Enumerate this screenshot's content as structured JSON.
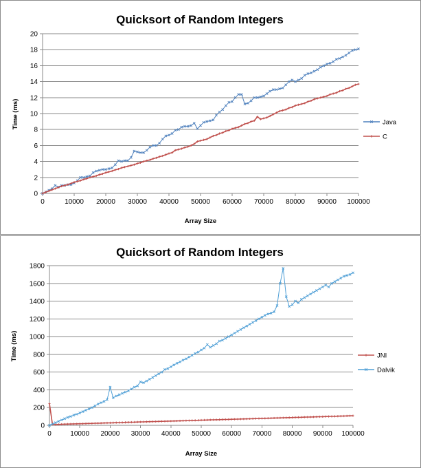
{
  "chart_data": [
    {
      "type": "line",
      "title": "Quicksort  of Random Integers",
      "xlabel": "Array Size",
      "ylabel": "Time (ms)",
      "xlim": [
        0,
        100000
      ],
      "ylim": [
        0,
        20
      ],
      "x_ticks": [
        "0",
        "10000",
        "20000",
        "30000",
        "40000",
        "50000",
        "60000",
        "70000",
        "80000",
        "90000",
        "100000"
      ],
      "y_ticks": [
        "0",
        "2",
        "4",
        "6",
        "8",
        "10",
        "12",
        "14",
        "16",
        "18",
        "20"
      ],
      "grid": true,
      "legend_position": "right",
      "x": [
        0,
        1000,
        2000,
        3000,
        4000,
        5000,
        6000,
        7000,
        8000,
        9000,
        10000,
        11000,
        12000,
        13000,
        14000,
        15000,
        16000,
        17000,
        18000,
        19000,
        20000,
        21000,
        22000,
        23000,
        24000,
        25000,
        26000,
        27000,
        28000,
        29000,
        30000,
        31000,
        32000,
        33000,
        34000,
        35000,
        36000,
        37000,
        38000,
        39000,
        40000,
        41000,
        42000,
        43000,
        44000,
        45000,
        46000,
        47000,
        48000,
        49000,
        50000,
        51000,
        52000,
        53000,
        54000,
        55000,
        56000,
        57000,
        58000,
        59000,
        60000,
        61000,
        62000,
        63000,
        64000,
        65000,
        66000,
        67000,
        68000,
        69000,
        70000,
        71000,
        72000,
        73000,
        74000,
        75000,
        76000,
        77000,
        78000,
        79000,
        80000,
        81000,
        82000,
        83000,
        84000,
        85000,
        86000,
        87000,
        88000,
        89000,
        90000,
        91000,
        92000,
        93000,
        94000,
        95000,
        96000,
        97000,
        98000,
        99000,
        100000
      ],
      "series": [
        {
          "name": "Java",
          "color": "#4f81bd",
          "marker": "x",
          "values": [
            0,
            0.2,
            0.4,
            0.6,
            1.0,
            0.8,
            1.0,
            1.0,
            1.1,
            1.1,
            1.3,
            1.6,
            2.0,
            2.0,
            2.1,
            2.2,
            2.6,
            2.8,
            2.9,
            3.0,
            3.0,
            3.1,
            3.2,
            3.6,
            4.1,
            4.0,
            4.1,
            4.1,
            4.5,
            5.3,
            5.2,
            5.1,
            5.1,
            5.4,
            5.8,
            6.0,
            6.0,
            6.3,
            6.8,
            7.2,
            7.3,
            7.5,
            7.9,
            8.0,
            8.3,
            8.4,
            8.4,
            8.5,
            8.8,
            8.1,
            8.5,
            8.9,
            9.0,
            9.1,
            9.2,
            9.8,
            10.2,
            10.5,
            11.0,
            11.4,
            11.5,
            12.0,
            12.4,
            12.4,
            11.2,
            11.3,
            11.6,
            12.0,
            12.0,
            12.1,
            12.2,
            12.5,
            12.8,
            13.0,
            13.0,
            13.1,
            13.2,
            13.6,
            14.0,
            14.2,
            14.0,
            14.2,
            14.4,
            14.8,
            15.0,
            15.1,
            15.3,
            15.5,
            15.8,
            16.0,
            16.2,
            16.3,
            16.5,
            16.8,
            16.9,
            17.1,
            17.3,
            17.6,
            17.9,
            18.0,
            18.1
          ]
        },
        {
          "name": "C",
          "color": "#c0504d",
          "marker": "+",
          "values": [
            0,
            0.15,
            0.3,
            0.45,
            0.6,
            0.75,
            0.9,
            1.0,
            1.1,
            1.25,
            1.4,
            1.5,
            1.6,
            1.75,
            1.85,
            2.0,
            2.1,
            2.2,
            2.35,
            2.45,
            2.6,
            2.7,
            2.8,
            2.95,
            3.05,
            3.2,
            3.3,
            3.4,
            3.5,
            3.6,
            3.75,
            3.85,
            4.0,
            4.1,
            4.2,
            4.35,
            4.45,
            4.6,
            4.7,
            4.85,
            5.0,
            5.1,
            5.4,
            5.5,
            5.6,
            5.75,
            5.85,
            6.0,
            6.2,
            6.5,
            6.6,
            6.7,
            6.8,
            7.0,
            7.2,
            7.3,
            7.5,
            7.6,
            7.8,
            7.9,
            8.1,
            8.2,
            8.3,
            8.5,
            8.7,
            8.8,
            9.0,
            9.1,
            9.6,
            9.3,
            9.4,
            9.5,
            9.7,
            9.9,
            10.1,
            10.3,
            10.4,
            10.5,
            10.7,
            10.8,
            11.0,
            11.1,
            11.2,
            11.3,
            11.5,
            11.6,
            11.8,
            11.9,
            12.0,
            12.1,
            12.2,
            12.4,
            12.5,
            12.6,
            12.8,
            12.9,
            13.1,
            13.2,
            13.4,
            13.6,
            13.7
          ]
        }
      ]
    },
    {
      "type": "line",
      "title": "Quicksort  of Random Integers",
      "xlabel": "Array Size",
      "ylabel": "Time (ms)",
      "xlim": [
        0,
        100000
      ],
      "ylim": [
        0,
        1800
      ],
      "x_ticks": [
        "0",
        "10000",
        "20000",
        "30000",
        "40000",
        "50000",
        "60000",
        "70000",
        "80000",
        "90000",
        "100000"
      ],
      "y_ticks": [
        "0",
        "200",
        "400",
        "600",
        "800",
        "1000",
        "1200",
        "1400",
        "1600",
        "1800"
      ],
      "grid": true,
      "legend_position": "right",
      "x": [
        0,
        1000,
        2000,
        3000,
        4000,
        5000,
        6000,
        7000,
        8000,
        9000,
        10000,
        11000,
        12000,
        13000,
        14000,
        15000,
        16000,
        17000,
        18000,
        19000,
        20000,
        21000,
        22000,
        23000,
        24000,
        25000,
        26000,
        27000,
        28000,
        29000,
        30000,
        31000,
        32000,
        33000,
        34000,
        35000,
        36000,
        37000,
        38000,
        39000,
        40000,
        41000,
        42000,
        43000,
        44000,
        45000,
        46000,
        47000,
        48000,
        49000,
        50000,
        51000,
        52000,
        53000,
        54000,
        55000,
        56000,
        57000,
        58000,
        59000,
        60000,
        61000,
        62000,
        63000,
        64000,
        65000,
        66000,
        67000,
        68000,
        69000,
        70000,
        71000,
        72000,
        73000,
        74000,
        75000,
        76000,
        77000,
        78000,
        79000,
        80000,
        81000,
        82000,
        83000,
        84000,
        85000,
        86000,
        87000,
        88000,
        89000,
        90000,
        91000,
        92000,
        93000,
        94000,
        95000,
        96000,
        97000,
        98000,
        99000,
        100000
      ],
      "series": [
        {
          "name": "JNI",
          "color": "#c0504d",
          "marker": "+",
          "values": [
            245,
            10,
            8,
            10,
            12,
            13,
            14,
            15,
            16,
            17,
            18,
            19,
            20,
            21,
            22,
            23,
            24,
            25,
            26,
            27,
            28,
            29,
            30,
            31,
            32,
            33,
            34,
            35,
            36,
            37,
            38,
            39,
            40,
            41,
            42,
            43,
            44,
            45,
            46,
            47,
            48,
            49,
            50,
            51,
            52,
            53,
            54,
            55,
            56,
            57,
            58,
            59,
            60,
            61,
            62,
            63,
            64,
            65,
            66,
            67,
            68,
            69,
            70,
            71,
            72,
            73,
            74,
            75,
            76,
            77,
            78,
            79,
            80,
            81,
            82,
            83,
            84,
            85,
            86,
            87,
            88,
            89,
            90,
            91,
            92,
            93,
            94,
            95,
            96,
            97,
            98,
            99,
            100,
            101,
            102,
            103,
            104,
            105,
            106,
            107,
            108
          ]
        },
        {
          "name": "Dalvik",
          "color": "#4f9fd6",
          "marker": "x",
          "values": [
            0,
            15,
            30,
            45,
            60,
            75,
            90,
            100,
            115,
            125,
            140,
            155,
            170,
            185,
            200,
            220,
            240,
            255,
            270,
            290,
            430,
            310,
            330,
            345,
            360,
            375,
            390,
            410,
            430,
            445,
            490,
            480,
            500,
            520,
            540,
            560,
            580,
            600,
            630,
            640,
            660,
            680,
            700,
            715,
            735,
            750,
            770,
            790,
            810,
            825,
            850,
            870,
            910,
            880,
            900,
            920,
            950,
            960,
            980,
            1000,
            1020,
            1040,
            1060,
            1080,
            1100,
            1120,
            1140,
            1160,
            1180,
            1200,
            1220,
            1240,
            1255,
            1265,
            1280,
            1350,
            1600,
            1770,
            1450,
            1340,
            1360,
            1400,
            1380,
            1420,
            1440,
            1460,
            1480,
            1500,
            1520,
            1540,
            1560,
            1580,
            1560,
            1600,
            1620,
            1640,
            1660,
            1680,
            1690,
            1700,
            1720
          ]
        }
      ]
    }
  ]
}
